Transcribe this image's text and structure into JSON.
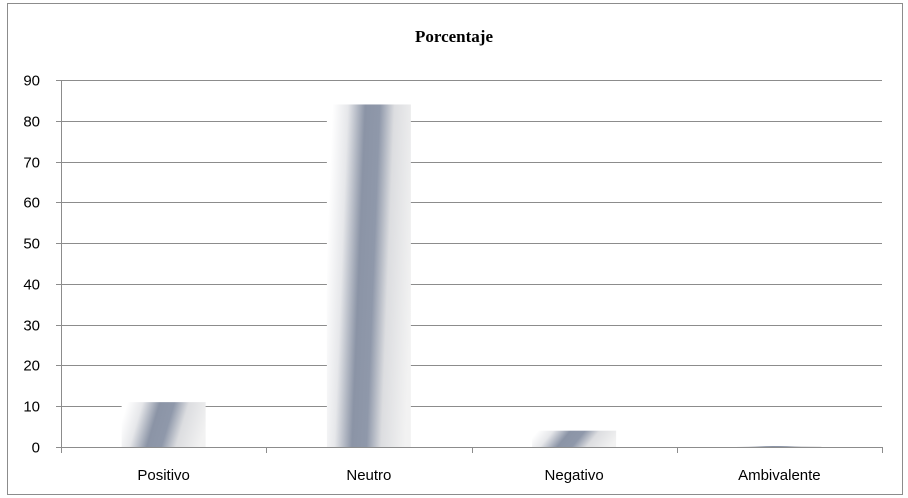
{
  "chart_data": {
    "type": "bar",
    "title": "Porcentaje",
    "categories": [
      "Positivo",
      "Neutro",
      "Negativo",
      "Ambivalente"
    ],
    "values": [
      11,
      84,
      4,
      0
    ],
    "xlabel": "",
    "ylabel": "",
    "ylim": [
      0,
      90
    ],
    "yticks": [
      "0",
      "10",
      "20",
      "30",
      "40",
      "50",
      "60",
      "70",
      "80",
      "90"
    ],
    "grid": true,
    "legend": "none",
    "colors": {
      "bar_dark": "#8b94a6",
      "bar_light": "#efefef",
      "grid": "#8c8c8c"
    }
  }
}
